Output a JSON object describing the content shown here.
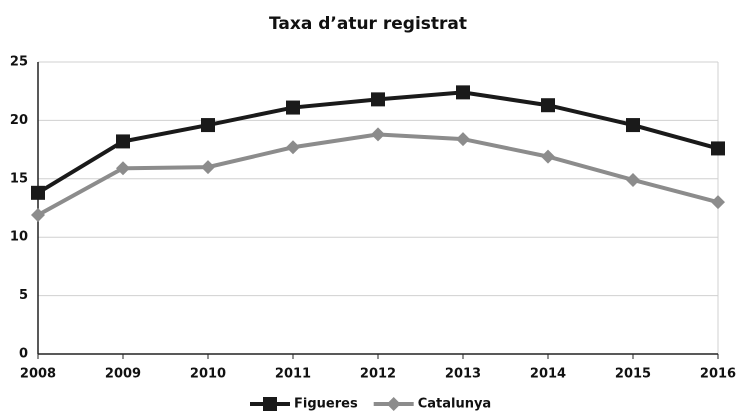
{
  "chart_data": {
    "type": "line",
    "title": "Taxa d’atur registrat",
    "categories": [
      "2008",
      "2009",
      "2010",
      "2011",
      "2012",
      "2013",
      "2014",
      "2015",
      "2016"
    ],
    "series": [
      {
        "name": "Figueres",
        "color": "#1a1a1a",
        "marker": "square",
        "values": [
          13.8,
          18.2,
          19.6,
          21.1,
          21.8,
          22.4,
          21.3,
          19.6,
          17.6
        ]
      },
      {
        "name": "Catalunya",
        "color": "#8c8c8c",
        "marker": "diamond",
        "values": [
          11.9,
          15.9,
          16.0,
          17.7,
          18.8,
          18.4,
          16.9,
          14.9,
          13.0
        ]
      }
    ],
    "ylim": [
      0,
      25
    ],
    "yticks": [
      0,
      5,
      10,
      15,
      20,
      25
    ],
    "grid": true,
    "legend": "bottom"
  }
}
